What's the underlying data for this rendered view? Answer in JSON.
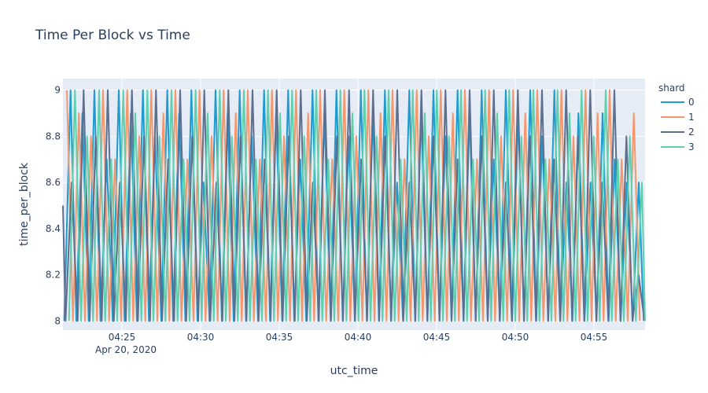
{
  "chart_data": {
    "type": "line",
    "title": "Time Per Block vs Time",
    "xlabel": "utc_time",
    "ylabel": "time_per_block",
    "x_range": [
      "2020-04-20 04:21:15",
      "2020-04-20 04:58:15"
    ],
    "ylim": [
      7.96,
      9.05
    ],
    "x_ticks": [
      "04:25",
      "04:30",
      "04:35",
      "04:40",
      "04:45",
      "04:50",
      "04:55"
    ],
    "x_tick_date_label": "Apr 20, 2020",
    "y_ticks": [
      "8",
      "8.2",
      "8.4",
      "8.6",
      "8.8",
      "9"
    ],
    "grid": true,
    "legend": {
      "title": "shard",
      "position": "right"
    },
    "series": [
      {
        "name": "0",
        "color": "#1f9bcf",
        "x": [
          "04:21:20",
          "04:21:44",
          "04:22:06",
          "04:22:29",
          "04:22:53",
          "04:23:15",
          "04:23:38",
          "04:24:02",
          "04:24:25",
          "04:24:48",
          "04:25:10",
          "04:25:34",
          "04:25:57",
          "04:26:20",
          "04:26:43",
          "04:27:06",
          "04:27:30",
          "04:27:53",
          "04:28:15",
          "04:28:38",
          "04:29:02",
          "04:29:25",
          "04:29:48",
          "04:30:11",
          "04:30:34",
          "04:30:57",
          "04:31:21",
          "04:31:43",
          "04:32:06",
          "04:32:29",
          "04:32:53",
          "04:33:15",
          "04:33:39",
          "04:34:02",
          "04:34:25",
          "04:34:48",
          "04:35:11",
          "04:35:34",
          "04:35:57",
          "04:36:20",
          "04:36:43",
          "04:37:07",
          "04:37:29",
          "04:37:52",
          "04:38:16",
          "04:38:38",
          "04:39:02",
          "04:39:25",
          "04:39:48",
          "04:40:11",
          "04:40:34",
          "04:40:57",
          "04:41:20",
          "04:41:43",
          "04:42:06",
          "04:42:29",
          "04:42:52",
          "04:43:16",
          "04:43:38",
          "04:44:01",
          "04:44:25",
          "04:44:48",
          "04:45:11",
          "04:45:34",
          "04:45:57",
          "04:46:20",
          "04:46:43",
          "04:47:06",
          "04:47:29",
          "04:47:52",
          "04:48:15",
          "04:48:38",
          "04:49:01",
          "04:49:24",
          "04:49:48",
          "04:50:11",
          "04:50:34",
          "04:50:57",
          "04:51:20",
          "04:51:43",
          "04:52:06",
          "04:52:29",
          "04:52:52",
          "04:53:15",
          "04:53:38",
          "04:54:01",
          "04:54:24",
          "04:54:47",
          "04:55:10",
          "04:55:33",
          "04:55:56",
          "04:56:19",
          "04:56:42",
          "04:57:05",
          "04:57:28",
          "04:57:51",
          "04:58:10"
        ],
        "y": [
          8.0,
          9.0,
          8.0,
          8.9,
          8.0,
          9.0,
          8.0,
          8.7,
          8.0,
          9.0,
          8.0,
          8.9,
          8.0,
          9.0,
          8.0,
          8.8,
          8.0,
          9.0,
          8.0,
          8.9,
          8.0,
          9.0,
          8.0,
          8.6,
          8.0,
          9.0,
          8.0,
          8.9,
          8.0,
          9.0,
          8.0,
          8.8,
          8.0,
          9.0,
          8.0,
          8.9,
          8.0,
          9.0,
          8.0,
          8.7,
          8.0,
          9.0,
          8.0,
          8.9,
          8.0,
          9.0,
          8.0,
          8.8,
          8.0,
          9.0,
          8.0,
          8.9,
          8.0,
          9.0,
          8.0,
          8.6,
          8.0,
          9.0,
          8.0,
          8.9,
          8.0,
          9.0,
          8.0,
          8.8,
          8.0,
          9.0,
          8.0,
          8.9,
          8.0,
          9.0,
          8.0,
          8.7,
          8.0,
          9.0,
          8.0,
          8.9,
          8.0,
          9.0,
          8.0,
          8.8,
          8.0,
          9.0,
          8.0,
          8.6,
          8.0,
          8.9,
          8.0,
          8.6,
          8.0,
          8.9,
          8.0,
          8.7,
          8.0,
          8.6,
          8.0,
          8.6,
          8.0
        ]
      },
      {
        "name": "1",
        "color": "#f4976c",
        "x": [
          "04:21:30",
          "04:21:53",
          "04:22:16",
          "04:22:39",
          "04:23:02",
          "04:23:25",
          "04:23:48",
          "04:24:11",
          "04:24:34",
          "04:24:57",
          "04:25:20",
          "04:25:43",
          "04:26:06",
          "04:26:29",
          "04:26:52",
          "04:27:15",
          "04:27:38",
          "04:28:01",
          "04:28:24",
          "04:28:47",
          "04:29:10",
          "04:29:33",
          "04:29:56",
          "04:30:19",
          "04:30:42",
          "04:31:05",
          "04:31:28",
          "04:31:51",
          "04:32:14",
          "04:32:37",
          "04:33:00",
          "04:33:23",
          "04:33:46",
          "04:34:09",
          "04:34:32",
          "04:34:55",
          "04:35:18",
          "04:35:41",
          "04:36:04",
          "04:36:27",
          "04:36:50",
          "04:37:13",
          "04:37:36",
          "04:37:59",
          "04:38:22",
          "04:38:45",
          "04:39:08",
          "04:39:31",
          "04:39:54",
          "04:40:17",
          "04:40:40",
          "04:41:03",
          "04:41:26",
          "04:41:49",
          "04:42:12",
          "04:42:35",
          "04:42:58",
          "04:43:21",
          "04:43:44",
          "04:44:07",
          "04:44:30",
          "04:44:53",
          "04:45:16",
          "04:45:39",
          "04:46:02",
          "04:46:25",
          "04:46:48",
          "04:47:11",
          "04:47:34",
          "04:47:57",
          "04:48:20",
          "04:48:43",
          "04:49:06",
          "04:49:29",
          "04:49:52",
          "04:50:15",
          "04:50:38",
          "04:51:01",
          "04:51:24",
          "04:51:47",
          "04:52:10",
          "04:52:33",
          "04:52:56",
          "04:53:19",
          "04:53:42",
          "04:54:05",
          "04:54:28",
          "04:54:51",
          "04:55:14",
          "04:55:37",
          "04:56:00",
          "04:56:23",
          "04:56:46",
          "04:57:09",
          "04:57:32",
          "04:57:55"
        ],
        "y": [
          9.0,
          8.0,
          8.9,
          8.0,
          8.8,
          8.0,
          9.0,
          8.0,
          8.7,
          8.0,
          9.0,
          8.0,
          8.8,
          8.0,
          9.0,
          8.0,
          8.9,
          8.0,
          9.0,
          8.0,
          8.7,
          8.0,
          9.0,
          8.0,
          8.8,
          8.0,
          9.0,
          8.0,
          8.9,
          8.0,
          9.0,
          8.0,
          8.7,
          8.0,
          9.0,
          8.0,
          8.8,
          8.0,
          9.0,
          8.0,
          8.9,
          8.0,
          9.0,
          8.0,
          8.7,
          8.0,
          9.0,
          8.0,
          8.8,
          8.0,
          9.0,
          8.0,
          8.9,
          8.0,
          9.0,
          8.0,
          8.7,
          8.0,
          9.0,
          8.0,
          8.8,
          8.0,
          9.0,
          8.0,
          8.9,
          8.0,
          9.0,
          8.0,
          8.7,
          8.0,
          9.0,
          8.0,
          8.8,
          8.0,
          9.0,
          8.0,
          8.9,
          8.0,
          9.0,
          8.0,
          8.7,
          8.0,
          9.0,
          8.0,
          8.8,
          8.0,
          9.0,
          8.0,
          8.9,
          8.0,
          9.0,
          8.0,
          8.7,
          8.0,
          8.9,
          8.0
        ]
      },
      {
        "name": "2",
        "color": "#5c6f8f",
        "x": [
          "04:21:15",
          "04:21:25",
          "04:21:48",
          "04:22:11",
          "04:22:34",
          "04:22:57",
          "04:23:20",
          "04:23:43",
          "04:24:06",
          "04:24:29",
          "04:24:52",
          "04:25:15",
          "04:25:38",
          "04:26:01",
          "04:26:24",
          "04:26:47",
          "04:27:10",
          "04:27:33",
          "04:27:56",
          "04:28:19",
          "04:28:42",
          "04:29:05",
          "04:29:28",
          "04:29:51",
          "04:30:14",
          "04:30:37",
          "04:31:00",
          "04:31:23",
          "04:31:46",
          "04:32:09",
          "04:32:32",
          "04:32:55",
          "04:33:18",
          "04:33:41",
          "04:34:04",
          "04:34:27",
          "04:34:50",
          "04:35:13",
          "04:35:36",
          "04:35:59",
          "04:36:22",
          "04:36:45",
          "04:37:08",
          "04:37:31",
          "04:37:54",
          "04:38:17",
          "04:38:40",
          "04:39:03",
          "04:39:26",
          "04:39:49",
          "04:40:12",
          "04:40:35",
          "04:40:58",
          "04:41:21",
          "04:41:44",
          "04:42:07",
          "04:42:30",
          "04:42:53",
          "04:43:16",
          "04:43:39",
          "04:44:02",
          "04:44:25",
          "04:44:48",
          "04:45:11",
          "04:45:34",
          "04:45:57",
          "04:46:20",
          "04:46:43",
          "04:47:06",
          "04:47:29",
          "04:47:52",
          "04:48:15",
          "04:48:38",
          "04:49:01",
          "04:49:24",
          "04:49:47",
          "04:50:10",
          "04:50:33",
          "04:50:56",
          "04:51:19",
          "04:51:42",
          "04:52:05",
          "04:52:28",
          "04:52:51",
          "04:53:14",
          "04:53:37",
          "04:54:00",
          "04:54:23",
          "04:54:46",
          "04:55:09",
          "04:55:32",
          "04:55:55",
          "04:56:18",
          "04:56:41",
          "04:57:04",
          "04:57:27",
          "04:57:50",
          "04:58:13"
        ],
        "y": [
          8.5,
          8.0,
          8.6,
          8.0,
          9.0,
          8.0,
          8.8,
          8.0,
          9.0,
          8.0,
          8.6,
          8.0,
          9.0,
          8.0,
          8.8,
          8.0,
          9.0,
          8.0,
          8.7,
          8.0,
          9.0,
          8.0,
          8.8,
          8.0,
          9.0,
          8.0,
          8.6,
          8.0,
          9.0,
          8.0,
          8.8,
          8.0,
          9.0,
          8.0,
          8.7,
          8.0,
          9.0,
          8.0,
          8.8,
          8.0,
          9.0,
          8.0,
          8.6,
          8.0,
          9.0,
          8.0,
          8.8,
          8.0,
          9.0,
          8.0,
          8.7,
          8.0,
          9.0,
          8.0,
          8.8,
          8.0,
          9.0,
          8.0,
          8.6,
          8.0,
          9.0,
          8.0,
          8.8,
          8.0,
          9.0,
          8.0,
          8.7,
          8.0,
          9.0,
          8.0,
          8.8,
          8.0,
          9.0,
          8.0,
          8.6,
          8.0,
          9.0,
          8.0,
          8.8,
          8.0,
          9.0,
          8.0,
          8.7,
          8.0,
          9.0,
          8.0,
          8.8,
          8.0,
          9.0,
          8.0,
          8.6,
          8.0,
          9.0,
          8.0,
          8.8,
          8.0,
          8.2,
          8.0
        ]
      },
      {
        "name": "3",
        "color": "#5fd0ae",
        "x": [
          "04:21:38",
          "04:22:01",
          "04:22:24",
          "04:22:47",
          "04:23:10",
          "04:23:33",
          "04:23:56",
          "04:24:19",
          "04:24:42",
          "04:25:05",
          "04:25:28",
          "04:25:51",
          "04:26:14",
          "04:26:37",
          "04:27:00",
          "04:27:23",
          "04:27:46",
          "04:28:09",
          "04:28:32",
          "04:28:55",
          "04:29:18",
          "04:29:41",
          "04:30:04",
          "04:30:27",
          "04:30:50",
          "04:31:13",
          "04:31:36",
          "04:31:59",
          "04:32:22",
          "04:32:45",
          "04:33:08",
          "04:33:31",
          "04:33:54",
          "04:34:17",
          "04:34:40",
          "04:35:03",
          "04:35:26",
          "04:35:49",
          "04:36:12",
          "04:36:35",
          "04:36:58",
          "04:37:21",
          "04:37:44",
          "04:38:07",
          "04:38:30",
          "04:38:53",
          "04:39:16",
          "04:39:39",
          "04:40:02",
          "04:40:25",
          "04:40:48",
          "04:41:11",
          "04:41:34",
          "04:41:57",
          "04:42:20",
          "04:42:43",
          "04:43:06",
          "04:43:29",
          "04:43:52",
          "04:44:15",
          "04:44:38",
          "04:45:01",
          "04:45:24",
          "04:45:47",
          "04:46:10",
          "04:46:33",
          "04:46:56",
          "04:47:19",
          "04:47:42",
          "04:48:05",
          "04:48:28",
          "04:48:51",
          "04:49:14",
          "04:49:37",
          "04:50:00",
          "04:50:23",
          "04:50:46",
          "04:51:09",
          "04:51:32",
          "04:51:55",
          "04:52:18",
          "04:52:41",
          "04:53:04",
          "04:53:27",
          "04:53:50",
          "04:54:13",
          "04:54:36",
          "04:54:59",
          "04:55:22",
          "04:55:45",
          "04:56:08",
          "04:56:31",
          "04:56:54",
          "04:57:17",
          "04:57:40",
          "04:58:03",
          "04:58:15"
        ],
        "y": [
          8.0,
          9.0,
          8.0,
          8.8,
          8.0,
          9.0,
          8.0,
          8.7,
          8.0,
          9.0,
          8.0,
          8.9,
          8.0,
          9.0,
          8.0,
          8.8,
          8.0,
          9.0,
          8.0,
          8.7,
          8.0,
          9.0,
          8.0,
          8.9,
          8.0,
          9.0,
          8.0,
          8.8,
          8.0,
          9.0,
          8.0,
          8.7,
          8.0,
          9.0,
          8.0,
          8.9,
          8.0,
          9.0,
          8.0,
          8.8,
          8.0,
          9.0,
          8.0,
          8.7,
          8.0,
          9.0,
          8.0,
          8.9,
          8.0,
          9.0,
          8.0,
          8.8,
          8.0,
          9.0,
          8.0,
          8.7,
          8.0,
          9.0,
          8.0,
          8.9,
          8.0,
          9.0,
          8.0,
          8.8,
          8.0,
          9.0,
          8.0,
          8.7,
          8.0,
          9.0,
          8.0,
          8.9,
          8.0,
          9.0,
          8.0,
          8.8,
          8.0,
          9.0,
          8.0,
          8.7,
          8.0,
          9.0,
          8.0,
          8.9,
          8.0,
          9.0,
          8.0,
          8.8,
          8.0,
          9.0,
          8.0,
          8.7,
          8.0,
          8.8,
          8.0,
          8.6,
          8.0
        ]
      }
    ]
  }
}
